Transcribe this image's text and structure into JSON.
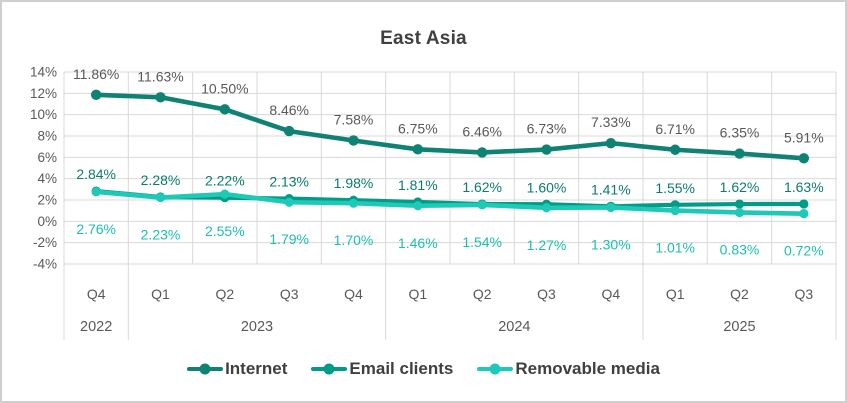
{
  "chart_data": {
    "type": "line",
    "title": "East Asia",
    "quarters": [
      "Q4",
      "Q1",
      "Q2",
      "Q3",
      "Q4",
      "Q1",
      "Q2",
      "Q3",
      "Q4",
      "Q1",
      "Q2",
      "Q3"
    ],
    "year_groups": [
      {
        "label": "2022",
        "cols": 1
      },
      {
        "label": "2023",
        "cols": 4
      },
      {
        "label": "2024",
        "cols": 4
      },
      {
        "label": "2025",
        "cols": 3
      }
    ],
    "ylim": [
      -4,
      14
    ],
    "ytick_step": 2,
    "ytick_labels": [
      "14%",
      "12%",
      "10%",
      "8%",
      "6%",
      "4%",
      "2%",
      "0%",
      "-2%",
      "-4%"
    ],
    "grid": true,
    "legend_position": "bottom",
    "series": [
      {
        "name": "Internet",
        "color": "#0f8274",
        "label_color": "#595959",
        "values": [
          11.86,
          11.63,
          10.5,
          8.46,
          7.58,
          6.75,
          6.46,
          6.73,
          7.33,
          6.71,
          6.35,
          5.91
        ],
        "labels": [
          "11.86%",
          "11.63%",
          "10.50%",
          "8.46%",
          "7.58%",
          "6.75%",
          "6.46%",
          "6.73%",
          "7.33%",
          "6.71%",
          "6.35%",
          "5.91%"
        ]
      },
      {
        "name": "Email clients",
        "color": "#009c87",
        "label_color": "#0c7c6c",
        "values": [
          2.84,
          2.28,
          2.22,
          2.13,
          1.98,
          1.81,
          1.62,
          1.6,
          1.41,
          1.55,
          1.62,
          1.63
        ],
        "labels": [
          "2.84%",
          "2.28%",
          "2.22%",
          "2.13%",
          "1.98%",
          "1.81%",
          "1.62%",
          "1.60%",
          "1.41%",
          "1.55%",
          "1.62%",
          "1.63%"
        ]
      },
      {
        "name": "Removable media",
        "color": "#1ec9b7",
        "label_color": "#1dc0af",
        "values": [
          2.76,
          2.23,
          2.55,
          1.79,
          1.7,
          1.46,
          1.54,
          1.27,
          1.3,
          1.01,
          0.83,
          0.72
        ],
        "labels": [
          "2.76%",
          "2.23%",
          "2.55%",
          "1.79%",
          "1.70%",
          "1.46%",
          "1.54%",
          "1.27%",
          "1.30%",
          "1.01%",
          "0.83%",
          "0.72%"
        ]
      }
    ]
  },
  "legend": {
    "marker_shape": "line-with-dot"
  },
  "styles": {
    "background": "#ffffff",
    "border_color": "#cfcfcf",
    "grid_color": "#d9d9d9",
    "axis_text_color": "#595959",
    "title_color": "#404040",
    "legend_text_color": "#3f3f3f"
  }
}
